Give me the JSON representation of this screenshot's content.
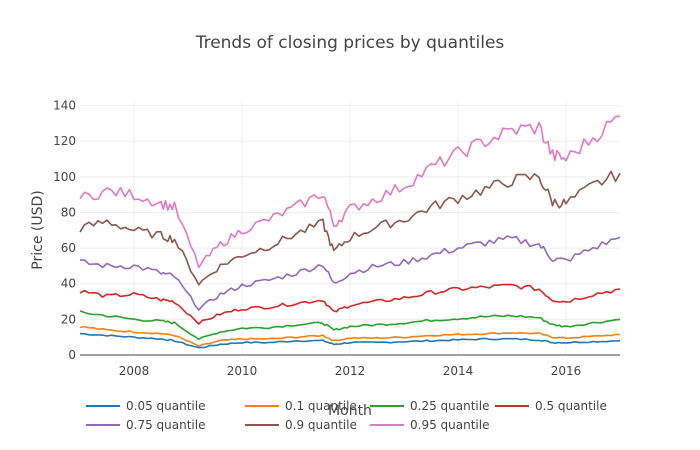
{
  "chart_data": {
    "type": "line",
    "title": "Trends of closing prices by quantiles",
    "xlabel": "Month",
    "ylabel": "Price (USD)",
    "xlim": [
      2007.0,
      2017.0
    ],
    "ylim": [
      0,
      142
    ],
    "x_ticks": [
      2008,
      2010,
      2012,
      2014,
      2016
    ],
    "y_ticks": [
      0,
      20,
      40,
      60,
      80,
      100,
      120,
      140
    ],
    "grid": true,
    "legend_position": "bottom",
    "x": [
      2007.0,
      2007.5,
      2008.0,
      2008.5,
      2008.75,
      2009.2,
      2009.6,
      2010.0,
      2010.5,
      2011.0,
      2011.5,
      2011.7,
      2012.0,
      2012.5,
      2013.0,
      2013.5,
      2014.0,
      2014.5,
      2015.0,
      2015.5,
      2015.75,
      2016.0,
      2016.5,
      2017.0
    ],
    "series": [
      {
        "name": "0.05 quantile",
        "color": "#1f77b4",
        "values": [
          12,
          11,
          10,
          9,
          8,
          4,
          6,
          7,
          7,
          8,
          8,
          6,
          7,
          7,
          7.5,
          8,
          8.5,
          9,
          9,
          8.5,
          7,
          7,
          7.5,
          8
        ]
      },
      {
        "name": "0.1 quantile",
        "color": "#ff7f0e",
        "values": [
          16,
          14,
          13,
          12,
          11,
          5,
          8,
          9,
          9,
          10,
          11,
          8,
          9.5,
          9.5,
          10,
          11,
          11.5,
          12,
          12.5,
          12,
          10,
          9.5,
          10.5,
          11.5
        ]
      },
      {
        "name": "0.25 quantile",
        "color": "#2ca02c",
        "values": [
          24,
          22,
          20,
          19,
          18,
          9,
          13,
          15,
          15.5,
          17,
          18,
          14,
          16,
          17,
          18,
          19.5,
          20.5,
          21.5,
          22,
          21,
          17,
          16,
          18,
          20
        ]
      },
      {
        "name": "0.5 quantile",
        "color": "#d62728",
        "values": [
          36,
          33,
          34,
          31,
          30,
          18,
          23,
          26,
          27,
          29,
          31,
          24,
          28,
          30,
          32,
          35,
          37,
          38,
          39,
          37,
          31,
          30,
          34,
          37
        ]
      },
      {
        "name": "0.75 quantile",
        "color": "#9467bd",
        "values": [
          52,
          50,
          50,
          46,
          44,
          26,
          34,
          39,
          42,
          46,
          51,
          40,
          46,
          50,
          52,
          56,
          60,
          63,
          65,
          62,
          54,
          53,
          60,
          66
        ]
      },
      {
        "name": "0.9 quantile",
        "color": "#8c564b",
        "values": [
          71,
          75,
          70,
          67,
          65,
          40,
          50,
          56,
          61,
          68,
          74,
          58,
          66,
          72,
          76,
          83,
          88,
          93,
          98,
          100,
          86,
          85,
          95,
          102
        ]
      },
      {
        "name": "0.95 quantile",
        "color": "#e377c2",
        "values": [
          88,
          92,
          90,
          85,
          83,
          50,
          62,
          70,
          76,
          83,
          91,
          73,
          82,
          88,
          95,
          105,
          113,
          120,
          126,
          128,
          112,
          110,
          122,
          134
        ]
      }
    ]
  }
}
